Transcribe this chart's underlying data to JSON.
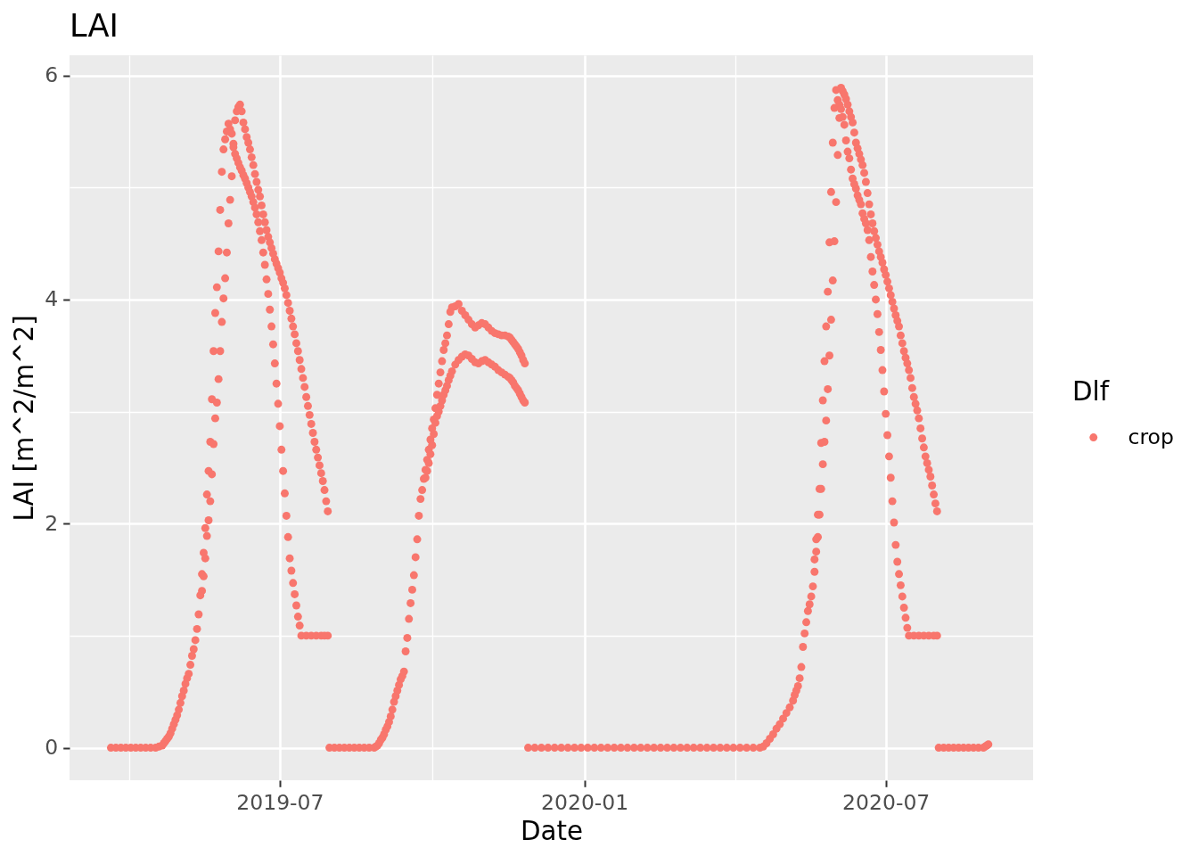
{
  "chart_data": {
    "type": "scatter",
    "title": "LAI",
    "xlabel": "Date",
    "ylabel": "LAI [m^2/m^2]",
    "legend_title": "Dlf",
    "legend": "right",
    "grid": true,
    "marker": "circle",
    "xlim": [
      "2019-02-24",
      "2020-09-28"
    ],
    "ylim": [
      -0.29,
      6.18
    ],
    "xticks": [
      {
        "value": "2019-04",
        "label": null
      },
      "2019-07",
      {
        "value": "2019-10",
        "label": null
      },
      "2020-01",
      {
        "value": "2020-04",
        "label": null
      },
      "2020-07"
    ],
    "yticks": [
      0,
      {
        "value": 1,
        "label": null
      },
      2,
      {
        "value": 3,
        "label": null
      },
      4,
      {
        "value": 5,
        "label": null
      },
      6
    ],
    "x": [
      "2019-03-21",
      "2019-03-24",
      "2019-03-27",
      "2019-03-30",
      "2019-04-02",
      "2019-04-05",
      "2019-04-08",
      "2019-04-11",
      "2019-04-14",
      "2019-04-17",
      "2019-04-19",
      "2019-04-21",
      "2019-04-22",
      "2019-04-23",
      "2019-04-24",
      "2019-04-25",
      "2019-04-26",
      "2019-04-27",
      "2019-04-28",
      "2019-04-29",
      "2019-04-30",
      "2019-05-01",
      "2019-05-02",
      "2019-05-03",
      "2019-05-04",
      "2019-05-05",
      "2019-05-06",
      "2019-05-07",
      "2019-05-08",
      "2019-05-09",
      "2019-05-10",
      "2019-05-11",
      "2019-05-12",
      "2019-05-13",
      "2019-05-14",
      "2019-05-15",
      "2019-05-16",
      "2019-05-17",
      "2019-05-18",
      "2019-05-19",
      "2019-05-20",
      "2019-05-21",
      "2019-05-22",
      "2019-05-23",
      "2019-05-24",
      "2019-05-25",
      "2019-05-26",
      "2019-05-27",
      "2019-05-28",
      "2019-05-29",
      "2019-05-30",
      "2019-05-31",
      "2019-06-01",
      "2019-06-02",
      "2019-06-03",
      "2019-06-04",
      "2019-06-05",
      "2019-06-06",
      "2019-06-07",
      "2019-06-08",
      "2019-06-09",
      "2019-06-10",
      "2019-06-11",
      "2019-06-12",
      "2019-06-13",
      "2019-06-14",
      "2019-06-15",
      "2019-06-16",
      "2019-06-17",
      "2019-06-18",
      "2019-06-19",
      "2019-06-20",
      "2019-06-21",
      "2019-06-22",
      "2019-06-23",
      "2019-06-24",
      "2019-06-25",
      "2019-06-26",
      "2019-06-27",
      "2019-06-28",
      "2019-06-29",
      "2019-06-30",
      "2019-07-01",
      "2019-07-02",
      "2019-07-03",
      "2019-07-04",
      "2019-07-05",
      "2019-07-06",
      "2019-07-07",
      "2019-07-08",
      "2019-07-09",
      "2019-07-10",
      "2019-07-11",
      "2019-07-12",
      "2019-07-13",
      "2019-07-14",
      "2019-07-17",
      "2019-07-20",
      "2019-07-23",
      "2019-07-26",
      "2019-07-28",
      "2019-07-30",
      "2019-05-15",
      "2019-05-16",
      "2019-05-17",
      "2019-05-18",
      "2019-05-19",
      "2019-05-20",
      "2019-05-21",
      "2019-05-22",
      "2019-05-23",
      "2019-05-24",
      "2019-05-25",
      "2019-05-26",
      "2019-05-27",
      "2019-05-28",
      "2019-05-29",
      "2019-05-30",
      "2019-05-31",
      "2019-06-01",
      "2019-06-02",
      "2019-06-03",
      "2019-06-04",
      "2019-06-05",
      "2019-06-06",
      "2019-06-07",
      "2019-06-08",
      "2019-06-09",
      "2019-06-10",
      "2019-06-11",
      "2019-06-12",
      "2019-06-13",
      "2019-06-14",
      "2019-06-15",
      "2019-06-16",
      "2019-06-17",
      "2019-06-18",
      "2019-06-19",
      "2019-06-20",
      "2019-06-21",
      "2019-06-22",
      "2019-06-23",
      "2019-06-24",
      "2019-06-25",
      "2019-06-26",
      "2019-06-27",
      "2019-06-28",
      "2019-06-29",
      "2019-06-30",
      "2019-07-01",
      "2019-07-02",
      "2019-07-03",
      "2019-07-04",
      "2019-07-05",
      "2019-07-06",
      "2019-07-07",
      "2019-07-08",
      "2019-07-09",
      "2019-07-10",
      "2019-07-11",
      "2019-07-12",
      "2019-07-13",
      "2019-07-14",
      "2019-07-15",
      "2019-07-16",
      "2019-07-17",
      "2019-07-18",
      "2019-07-19",
      "2019-07-20",
      "2019-07-21",
      "2019-07-22",
      "2019-07-23",
      "2019-07-24",
      "2019-07-25",
      "2019-07-26",
      "2019-07-27",
      "2019-07-28",
      "2019-07-29",
      "2019-07-30",
      "2019-07-31",
      "2019-08-03",
      "2019-08-06",
      "2019-08-09",
      "2019-08-12",
      "2019-08-15",
      "2019-08-18",
      "2019-08-21",
      "2019-08-24",
      "2019-08-27",
      "2019-08-28",
      "2019-08-29",
      "2019-08-30",
      "2019-08-31",
      "2019-09-01",
      "2019-09-02",
      "2019-09-03",
      "2019-09-04",
      "2019-09-05",
      "2019-09-06",
      "2019-09-07",
      "2019-09-08",
      "2019-09-09",
      "2019-09-10",
      "2019-09-11",
      "2019-09-12",
      "2019-09-13",
      "2019-09-14",
      "2019-09-15",
      "2019-09-16",
      "2019-09-17",
      "2019-09-18",
      "2019-09-19",
      "2019-09-20",
      "2019-09-21",
      "2019-09-22",
      "2019-09-23",
      "2019-09-24",
      "2019-09-25",
      "2019-09-26",
      "2019-09-27",
      "2019-09-28",
      "2019-09-29",
      "2019-09-30",
      "2019-10-01",
      "2019-10-02",
      "2019-10-03",
      "2019-10-04",
      "2019-10-05",
      "2019-10-06",
      "2019-10-07",
      "2019-10-08",
      "2019-10-09",
      "2019-10-10",
      "2019-10-11",
      "2019-10-12",
      "2019-10-13",
      "2019-10-15",
      "2019-10-17",
      "2019-10-19",
      "2019-10-21",
      "2019-10-23",
      "2019-10-25",
      "2019-10-27",
      "2019-10-29",
      "2019-10-31",
      "2019-11-02",
      "2019-11-04",
      "2019-11-06",
      "2019-11-08",
      "2019-11-10",
      "2019-11-12",
      "2019-11-14",
      "2019-11-16",
      "2019-11-17",
      "2019-11-18",
      "2019-11-19",
      "2019-11-20",
      "2019-11-21",
      "2019-11-22",
      "2019-11-23",
      "2019-11-24",
      "2019-11-25",
      "2019-11-26",
      "2019-09-27",
      "2019-09-28",
      "2019-09-29",
      "2019-09-30",
      "2019-10-01",
      "2019-10-02",
      "2019-10-03",
      "2019-10-04",
      "2019-10-05",
      "2019-10-06",
      "2019-10-07",
      "2019-10-08",
      "2019-10-09",
      "2019-10-10",
      "2019-10-11",
      "2019-10-12",
      "2019-10-13",
      "2019-10-15",
      "2019-10-17",
      "2019-10-19",
      "2019-10-21",
      "2019-10-23",
      "2019-10-25",
      "2019-10-27",
      "2019-10-29",
      "2019-10-31",
      "2019-11-02",
      "2019-11-04",
      "2019-11-06",
      "2019-11-08",
      "2019-11-10",
      "2019-11-12",
      "2019-11-14",
      "2019-11-16",
      "2019-11-17",
      "2019-11-18",
      "2019-11-19",
      "2019-11-20",
      "2019-11-21",
      "2019-11-22",
      "2019-11-23",
      "2019-11-24",
      "2019-11-25",
      "2019-11-26",
      "2019-11-28",
      "2019-12-02",
      "2019-12-06",
      "2019-12-10",
      "2019-12-14",
      "2019-12-18",
      "2019-12-22",
      "2019-12-26",
      "2019-12-30",
      "2020-01-03",
      "2020-01-07",
      "2020-01-11",
      "2020-01-15",
      "2020-01-19",
      "2020-01-23",
      "2020-01-27",
      "2020-01-31",
      "2020-02-04",
      "2020-02-08",
      "2020-02-12",
      "2020-02-16",
      "2020-02-20",
      "2020-02-24",
      "2020-02-28",
      "2020-03-03",
      "2020-03-07",
      "2020-03-11",
      "2020-03-15",
      "2020-03-19",
      "2020-03-23",
      "2020-03-27",
      "2020-03-31",
      "2020-04-04",
      "2020-04-08",
      "2020-04-12",
      "2020-04-16",
      "2020-04-18",
      "2020-04-20",
      "2020-04-22",
      "2020-04-24",
      "2020-04-26",
      "2020-04-28",
      "2020-04-30",
      "2020-05-02",
      "2020-05-04",
      "2020-05-06",
      "2020-05-07",
      "2020-05-08",
      "2020-05-09",
      "2020-05-10",
      "2020-05-11",
      "2020-05-12",
      "2020-05-13",
      "2020-05-14",
      "2020-05-15",
      "2020-05-16",
      "2020-05-17",
      "2020-05-18",
      "2020-05-19",
      "2020-05-20",
      "2020-05-21",
      "2020-05-22",
      "2020-05-23",
      "2020-05-24",
      "2020-05-25",
      "2020-05-26",
      "2020-05-27",
      "2020-05-28",
      "2020-05-29",
      "2020-05-30",
      "2020-05-31",
      "2020-06-01",
      "2020-05-19",
      "2020-05-20",
      "2020-05-21",
      "2020-05-22",
      "2020-05-23",
      "2020-05-24",
      "2020-05-25",
      "2020-05-26",
      "2020-05-27",
      "2020-05-28",
      "2020-05-29",
      "2020-05-30",
      "2020-05-31",
      "2020-06-01",
      "2020-06-02",
      "2020-06-03",
      "2020-06-04",
      "2020-06-02",
      "2020-06-03",
      "2020-06-04",
      "2020-06-05",
      "2020-06-06",
      "2020-06-07",
      "2020-06-08",
      "2020-06-09",
      "2020-06-10",
      "2020-06-11",
      "2020-06-12",
      "2020-06-13",
      "2020-06-14",
      "2020-06-15",
      "2020-06-16",
      "2020-06-17",
      "2020-06-18",
      "2020-06-19",
      "2020-06-20",
      "2020-06-21",
      "2020-06-22",
      "2020-06-23",
      "2020-06-24",
      "2020-06-25",
      "2020-06-26",
      "2020-06-27",
      "2020-06-28",
      "2020-06-29",
      "2020-06-30",
      "2020-07-01",
      "2020-07-02",
      "2020-07-03",
      "2020-07-04",
      "2020-07-05",
      "2020-07-06",
      "2020-07-07",
      "2020-07-08",
      "2020-07-09",
      "2020-07-10",
      "2020-07-11",
      "2020-07-12",
      "2020-07-13",
      "2020-07-14",
      "2020-07-15",
      "2020-07-18",
      "2020-07-21",
      "2020-07-24",
      "2020-07-27",
      "2020-07-30",
      "2020-08-01",
      "2020-06-05",
      "2020-06-06",
      "2020-06-07",
      "2020-06-08",
      "2020-06-09",
      "2020-06-10",
      "2020-06-11",
      "2020-06-12",
      "2020-06-13",
      "2020-06-14",
      "2020-06-15",
      "2020-06-16",
      "2020-06-17",
      "2020-06-18",
      "2020-06-19",
      "2020-06-20",
      "2020-06-21",
      "2020-06-22",
      "2020-06-23",
      "2020-06-24",
      "2020-06-25",
      "2020-06-26",
      "2020-06-27",
      "2020-06-28",
      "2020-06-29",
      "2020-06-30",
      "2020-07-01",
      "2020-07-02",
      "2020-07-03",
      "2020-07-04",
      "2020-07-05",
      "2020-07-06",
      "2020-07-07",
      "2020-07-08",
      "2020-07-09",
      "2020-07-10",
      "2020-07-11",
      "2020-07-12",
      "2020-07-13",
      "2020-07-14",
      "2020-07-15",
      "2020-07-16",
      "2020-07-17",
      "2020-07-18",
      "2020-07-19",
      "2020-07-20",
      "2020-07-21",
      "2020-07-22",
      "2020-07-23",
      "2020-07-24",
      "2020-07-25",
      "2020-07-26",
      "2020-07-27",
      "2020-07-28",
      "2020-07-29",
      "2020-07-30",
      "2020-07-31",
      "2020-08-01",
      "2020-08-02",
      "2020-08-05",
      "2020-08-08",
      "2020-08-11",
      "2020-08-14",
      "2020-08-17",
      "2020-08-20",
      "2020-08-23",
      "2020-08-26",
      "2020-08-29",
      "2020-08-30",
      "2020-08-31",
      "2020-09-01"
    ],
    "series": [
      {
        "name": "crop",
        "color": "#f8766d",
        "values": [
          0,
          0,
          0,
          0,
          0,
          0,
          0,
          0,
          0,
          0,
          0.01,
          0.02,
          0.04,
          0.06,
          0.08,
          0.1,
          0.13,
          0.17,
          0.21,
          0.25,
          0.29,
          0.34,
          0.4,
          0.46,
          0.51,
          0.57,
          0.62,
          0.66,
          0.74,
          0.82,
          0.88,
          0.96,
          1.06,
          1.19,
          1.36,
          1.55,
          1.74,
          1.96,
          2.26,
          2.47,
          2.73,
          3.11,
          3.54,
          3.88,
          4.11,
          4.43,
          4.8,
          5.14,
          5.34,
          5.43,
          5.5,
          5.57,
          5.52,
          5.48,
          5.39,
          5.3,
          5.26,
          5.22,
          5.18,
          5.15,
          5.11,
          5.08,
          5.04,
          5,
          4.96,
          4.92,
          4.87,
          4.82,
          4.76,
          4.69,
          4.61,
          4.53,
          4.42,
          4.31,
          4.18,
          4.05,
          3.91,
          3.76,
          3.6,
          3.43,
          3.25,
          3.07,
          2.87,
          2.66,
          2.47,
          2.27,
          2.07,
          1.88,
          1.69,
          1.58,
          1.47,
          1.37,
          1.27,
          1.17,
          1.09,
          1,
          1,
          1,
          1,
          1,
          1,
          1,
          1.4,
          1.53,
          1.69,
          1.89,
          2.03,
          2.2,
          2.44,
          2.71,
          2.94,
          3.08,
          3.29,
          3.54,
          3.8,
          4.01,
          4.19,
          4.42,
          4.68,
          4.89,
          5.1,
          5.36,
          5.6,
          5.68,
          5.72,
          5.74,
          5.68,
          5.58,
          5.52,
          5.45,
          5.4,
          5.34,
          5.27,
          5.2,
          5.12,
          5.05,
          4.98,
          4.92,
          4.84,
          4.76,
          4.69,
          4.62,
          4.56,
          4.51,
          4.46,
          4.41,
          4.36,
          4.32,
          4.28,
          4.24,
          4.19,
          4.15,
          4.1,
          4.04,
          3.97,
          3.9,
          3.83,
          3.76,
          3.69,
          3.61,
          3.54,
          3.46,
          3.38,
          3.3,
          3.22,
          3.13,
          3.05,
          2.97,
          2.89,
          2.81,
          2.73,
          2.66,
          2.59,
          2.52,
          2.45,
          2.38,
          2.3,
          2.2,
          2.11,
          0,
          0,
          0,
          0,
          0,
          0,
          0,
          0,
          0,
          0,
          0.01,
          0.02,
          0.04,
          0.07,
          0.09,
          0.12,
          0.16,
          0.19,
          0.23,
          0.28,
          0.34,
          0.41,
          0.46,
          0.51,
          0.56,
          0.61,
          0.64,
          0.68,
          0.86,
          0.98,
          1.15,
          1.29,
          1.41,
          1.54,
          1.7,
          1.86,
          2.07,
          2.22,
          2.3,
          2.4,
          2.48,
          2.57,
          2.66,
          2.75,
          2.85,
          2.93,
          3.03,
          3.15,
          3.25,
          3.35,
          3.45,
          3.55,
          3.61,
          3.68,
          3.78,
          3.89,
          3.93,
          3.94,
          3.96,
          3.9,
          3.86,
          3.82,
          3.78,
          3.75,
          3.77,
          3.79,
          3.78,
          3.75,
          3.72,
          3.7,
          3.69,
          3.68,
          3.68,
          3.67,
          3.66,
          3.64,
          3.62,
          3.6,
          3.58,
          3.56,
          3.53,
          3.5,
          3.46,
          3.43,
          2.41,
          2.47,
          2.54,
          2.62,
          2.7,
          2.8,
          2.9,
          2.96,
          3,
          3.05,
          3.1,
          3.15,
          3.19,
          3.23,
          3.28,
          3.32,
          3.36,
          3.42,
          3.46,
          3.49,
          3.51,
          3.5,
          3.47,
          3.44,
          3.43,
          3.45,
          3.46,
          3.44,
          3.42,
          3.4,
          3.37,
          3.35,
          3.33,
          3.31,
          3.3,
          3.28,
          3.26,
          3.23,
          3.21,
          3.19,
          3.16,
          3.13,
          3.1,
          3.08,
          0,
          0,
          0,
          0,
          0,
          0,
          0,
          0,
          0,
          0,
          0,
          0,
          0,
          0,
          0,
          0,
          0,
          0,
          0,
          0,
          0,
          0,
          0,
          0,
          0,
          0,
          0,
          0,
          0,
          0,
          0,
          0,
          0,
          0,
          0,
          0,
          0.01,
          0.04,
          0.08,
          0.12,
          0.17,
          0.21,
          0.26,
          0.31,
          0.36,
          0.42,
          0.47,
          0.51,
          0.55,
          0.62,
          0.72,
          0.9,
          1.02,
          1.12,
          1.22,
          1.28,
          1.35,
          1.44,
          1.57,
          1.86,
          2.08,
          2.31,
          2.72,
          3.1,
          3.45,
          3.76,
          4.07,
          4.51,
          4.96,
          5.4,
          5.71,
          5.87,
          1.68,
          1.75,
          1.88,
          2.08,
          2.31,
          2.53,
          2.73,
          2.92,
          3.2,
          3.5,
          3.82,
          4.17,
          4.52,
          4.87,
          5.29,
          5.62,
          5.89,
          5.78,
          5.74,
          5.7,
          5.63,
          5.56,
          5.42,
          5.32,
          5.26,
          5.16,
          5.08,
          5.03,
          4.99,
          4.93,
          4.89,
          4.85,
          4.77,
          4.72,
          4.68,
          4.62,
          4.53,
          4.38,
          4.25,
          4.13,
          4,
          3.87,
          3.71,
          3.55,
          3.37,
          3.18,
          2.98,
          2.79,
          2.6,
          2.41,
          2.2,
          2.01,
          1.81,
          1.66,
          1.55,
          1.45,
          1.35,
          1.25,
          1.16,
          1.07,
          1,
          1,
          1,
          1,
          1,
          1,
          1,
          5.86,
          5.83,
          5.79,
          5.74,
          5.68,
          5.63,
          5.58,
          5.49,
          5.4,
          5.35,
          5.3,
          5.25,
          5.2,
          5.13,
          5.05,
          4.95,
          4.85,
          4.76,
          4.68,
          4.61,
          4.55,
          4.49,
          4.43,
          4.38,
          4.33,
          4.27,
          4.22,
          4.16,
          4.1,
          4.04,
          3.98,
          3.92,
          3.86,
          3.81,
          3.76,
          3.68,
          3.61,
          3.54,
          3.48,
          3.43,
          3.37,
          3.3,
          3.21,
          3.13,
          3.07,
          3.01,
          2.94,
          2.85,
          2.76,
          2.68,
          2.6,
          2.54,
          2.48,
          2.42,
          2.34,
          2.26,
          2.18,
          2.11,
          0,
          0,
          0,
          0,
          0,
          0,
          0,
          0,
          0,
          0,
          0.01,
          0.02,
          0.03
        ]
      }
    ]
  }
}
